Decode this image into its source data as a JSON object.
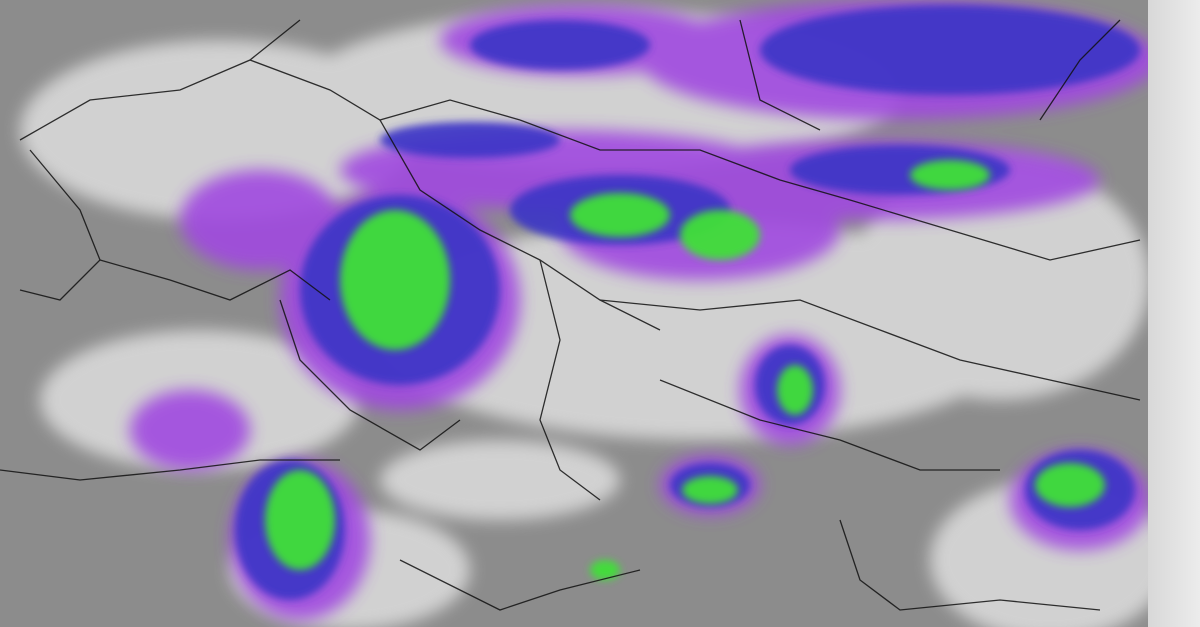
{
  "image": {
    "type": "satellite-infrared-composite",
    "colors": {
      "land_sea_base": "#8a8a8a",
      "cloud_white": "#e6e6e6",
      "cold_cloud_purple": "#9a40e0",
      "very_cold_blue": "#3a32c8",
      "precip_green": "#3ee03a",
      "border_lines": "#111111",
      "frame_edge": "#e4e4e4"
    }
  }
}
